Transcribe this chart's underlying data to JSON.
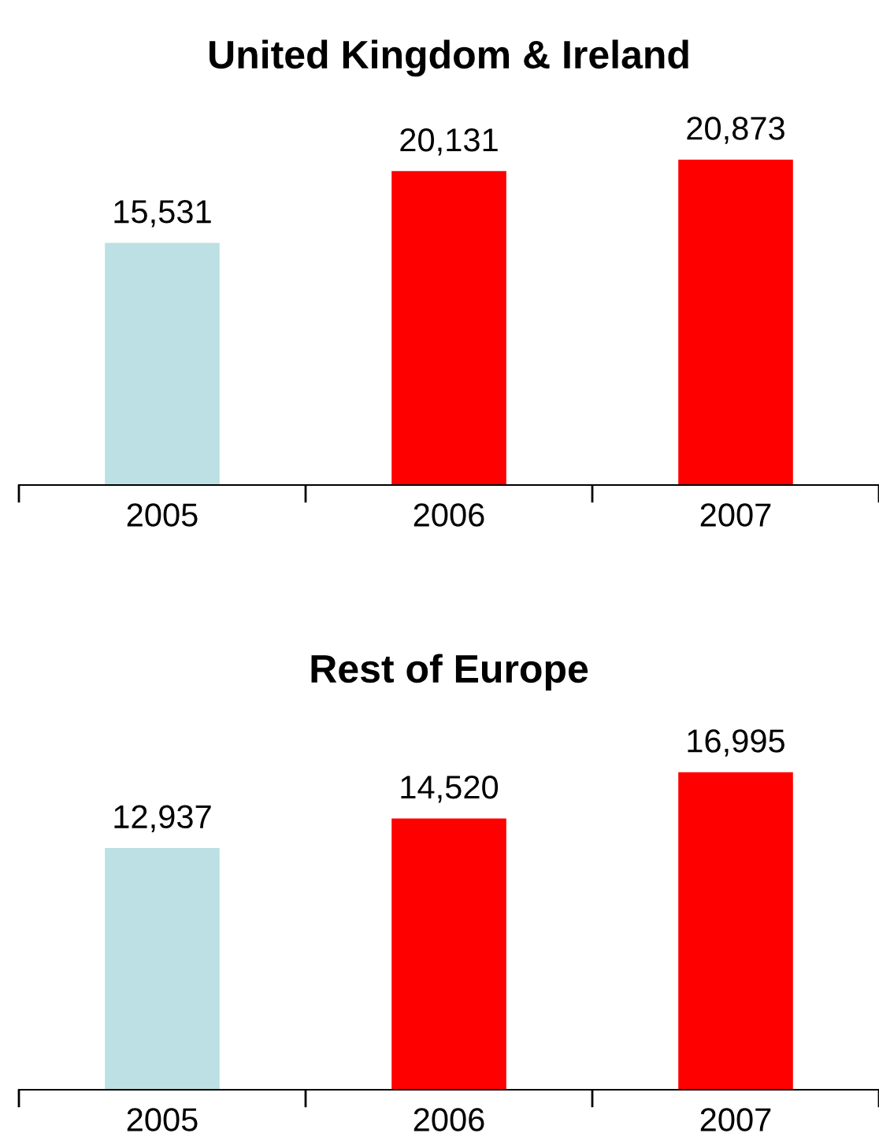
{
  "chart_data": [
    {
      "type": "bar",
      "title": "United Kingdom & Ireland",
      "categories": [
        "2005",
        "2006",
        "2007"
      ],
      "values": [
        15531,
        20131,
        20873
      ],
      "value_labels": [
        "15,531",
        "20,131",
        "20,873"
      ],
      "colors": [
        "#bce0e3",
        "#ff0000",
        "#ff0000"
      ],
      "grid": false,
      "legend": false
    },
    {
      "type": "bar",
      "title": "Rest of Europe",
      "categories": [
        "2005",
        "2006",
        "2007"
      ],
      "values": [
        12937,
        14520,
        16995
      ],
      "value_labels": [
        "12,937",
        "14,520",
        "16,995"
      ],
      "colors": [
        "#bce0e3",
        "#ff0000",
        "#ff0000"
      ],
      "grid": false,
      "legend": false
    }
  ]
}
